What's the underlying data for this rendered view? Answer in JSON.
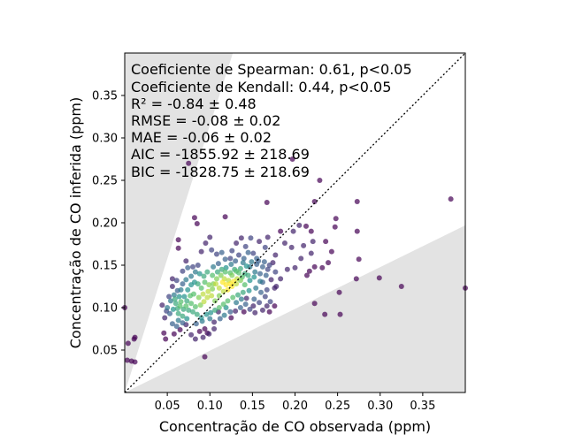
{
  "chart_data": {
    "type": "scatter",
    "xlabel": "Concentração de CO observada (ppm)",
    "ylabel": "Concentração de CO inferida (ppm)",
    "xlim": [
      0.0,
      0.4
    ],
    "ylim": [
      0.0,
      0.4
    ],
    "x_ticks": [
      "0.05",
      "0.10",
      "0.15",
      "0.20",
      "0.25",
      "0.30",
      "0.35"
    ],
    "y_ticks": [
      "0.05",
      "0.10",
      "0.15",
      "0.20",
      "0.25",
      "0.30",
      "0.35"
    ],
    "annotations": [
      "Coeficiente de Spearman: 0.61, p<0.05",
      "Coeficiente de Kendall: 0.44, p<0.05",
      "R² = -0.84 ± 0.48",
      "RMSE = -0.08 ± 0.02",
      "MAE = -0.06 ± 0.02",
      "AIC = -1855.92 ± 218.69",
      "BIC = -1828.75 ± 218.69"
    ],
    "identity_line": true,
    "shaded_regions": [
      {
        "vertices": [
          [
            0.0,
            0.0
          ],
          [
            0.0,
            0.4
          ],
          [
            0.127,
            0.4
          ]
        ]
      },
      {
        "vertices": [
          [
            0.0,
            0.0
          ],
          [
            0.4,
            0.0
          ],
          [
            0.4,
            0.197
          ]
        ]
      }
    ],
    "colormap": "viridis",
    "points": [
      [
        0.0,
        0.1,
        0.0
      ],
      [
        0.003,
        0.038,
        0.0
      ],
      [
        0.008,
        0.037,
        0.0
      ],
      [
        0.012,
        0.036,
        0.0
      ],
      [
        0.004,
        0.058,
        0.0
      ],
      [
        0.011,
        0.063,
        0.0
      ],
      [
        0.012,
        0.065,
        0.0
      ],
      [
        0.063,
        0.18,
        0.0
      ],
      [
        0.063,
        0.17,
        0.0
      ],
      [
        0.082,
        0.206,
        0.0
      ],
      [
        0.085,
        0.199,
        0.0
      ],
      [
        0.075,
        0.27,
        0.0
      ],
      [
        0.072,
        0.155,
        0.1
      ],
      [
        0.118,
        0.207,
        0.0
      ],
      [
        0.094,
        0.042,
        0.0
      ],
      [
        0.167,
        0.224,
        0.0
      ],
      [
        0.197,
        0.275,
        0.0
      ],
      [
        0.229,
        0.25,
        0.0
      ],
      [
        0.223,
        0.225,
        0.0
      ],
      [
        0.248,
        0.205,
        0.0
      ],
      [
        0.247,
        0.195,
        0.0
      ],
      [
        0.273,
        0.225,
        0.0
      ],
      [
        0.273,
        0.19,
        0.0
      ],
      [
        0.275,
        0.157,
        0.0
      ],
      [
        0.272,
        0.134,
        0.0
      ],
      [
        0.299,
        0.135,
        0.0
      ],
      [
        0.325,
        0.125,
        0.0
      ],
      [
        0.383,
        0.228,
        0.0
      ],
      [
        0.4,
        0.123,
        0.0
      ],
      [
        0.252,
        0.118,
        0.0
      ],
      [
        0.253,
        0.092,
        0.0
      ],
      [
        0.223,
        0.105,
        0.0
      ],
      [
        0.235,
        0.092,
        0.0
      ],
      [
        0.232,
        0.147,
        0.0
      ],
      [
        0.239,
        0.153,
        0.0
      ],
      [
        0.243,
        0.166,
        0.0
      ],
      [
        0.236,
        0.178,
        0.0
      ],
      [
        0.221,
        0.178,
        0.1
      ],
      [
        0.219,
        0.19,
        0.0
      ],
      [
        0.213,
        0.196,
        0.0
      ],
      [
        0.205,
        0.197,
        0.1
      ],
      [
        0.198,
        0.19,
        0.1
      ],
      [
        0.188,
        0.176,
        0.1
      ],
      [
        0.183,
        0.19,
        0.0
      ],
      [
        0.196,
        0.171,
        0.1
      ],
      [
        0.21,
        0.173,
        0.1
      ],
      [
        0.207,
        0.158,
        0.1
      ],
      [
        0.214,
        0.138,
        0.0
      ],
      [
        0.217,
        0.143,
        0.0
      ],
      [
        0.223,
        0.148,
        0.0
      ],
      [
        0.219,
        0.164,
        0.1
      ],
      [
        0.2,
        0.147,
        0.1
      ],
      [
        0.191,
        0.145,
        0.1
      ],
      [
        0.183,
        0.134,
        0.1
      ],
      [
        0.177,
        0.142,
        0.2
      ],
      [
        0.177,
        0.162,
        0.1
      ],
      [
        0.168,
        0.183,
        0.1
      ],
      [
        0.158,
        0.178,
        0.1
      ],
      [
        0.165,
        0.171,
        0.2
      ],
      [
        0.176,
        0.102,
        0.0
      ],
      [
        0.17,
        0.095,
        0.0
      ],
      [
        0.151,
        0.102,
        0.1
      ],
      [
        0.143,
        0.111,
        0.1
      ],
      [
        0.14,
        0.095,
        0.0
      ],
      [
        0.13,
        0.096,
        0.1
      ],
      [
        0.125,
        0.088,
        0.0
      ],
      [
        0.11,
        0.095,
        0.1
      ],
      [
        0.105,
        0.083,
        0.1
      ],
      [
        0.094,
        0.075,
        0.0
      ],
      [
        0.097,
        0.07,
        0.0
      ],
      [
        0.088,
        0.072,
        0.0
      ],
      [
        0.078,
        0.068,
        0.1
      ],
      [
        0.072,
        0.08,
        0.1
      ],
      [
        0.065,
        0.074,
        0.0
      ],
      [
        0.058,
        0.069,
        0.0
      ],
      [
        0.048,
        0.063,
        0.0
      ],
      [
        0.046,
        0.07,
        0.0
      ],
      [
        0.047,
        0.088,
        0.1
      ],
      [
        0.049,
        0.096,
        0.2
      ],
      [
        0.044,
        0.103,
        0.1
      ],
      [
        0.052,
        0.113,
        0.2
      ],
      [
        0.056,
        0.125,
        0.1
      ],
      [
        0.056,
        0.134,
        0.1
      ],
      [
        0.061,
        0.132,
        0.2
      ],
      [
        0.062,
        0.12,
        0.3
      ],
      [
        0.068,
        0.143,
        0.2
      ],
      [
        0.074,
        0.147,
        0.3
      ],
      [
        0.08,
        0.148,
        0.2
      ],
      [
        0.086,
        0.15,
        0.2
      ],
      [
        0.09,
        0.166,
        0.1
      ],
      [
        0.095,
        0.176,
        0.1
      ],
      [
        0.1,
        0.183,
        0.1
      ],
      [
        0.102,
        0.168,
        0.2
      ],
      [
        0.108,
        0.163,
        0.2
      ],
      [
        0.114,
        0.165,
        0.3
      ],
      [
        0.118,
        0.157,
        0.3
      ],
      [
        0.124,
        0.158,
        0.2
      ],
      [
        0.126,
        0.167,
        0.2
      ],
      [
        0.131,
        0.176,
        0.1
      ],
      [
        0.137,
        0.182,
        0.1
      ],
      [
        0.142,
        0.172,
        0.2
      ],
      [
        0.148,
        0.182,
        0.2
      ],
      [
        0.151,
        0.164,
        0.2
      ],
      [
        0.147,
        0.148,
        0.4
      ],
      [
        0.155,
        0.151,
        0.3
      ],
      [
        0.153,
        0.142,
        0.4
      ],
      [
        0.159,
        0.14,
        0.3
      ],
      [
        0.162,
        0.13,
        0.3
      ],
      [
        0.167,
        0.121,
        0.2
      ],
      [
        0.16,
        0.118,
        0.3
      ],
      [
        0.154,
        0.123,
        0.4
      ],
      [
        0.147,
        0.132,
        0.5
      ],
      [
        0.141,
        0.14,
        0.6
      ],
      [
        0.136,
        0.146,
        0.6
      ],
      [
        0.131,
        0.143,
        0.7
      ],
      [
        0.126,
        0.138,
        0.8
      ],
      [
        0.122,
        0.132,
        0.9
      ],
      [
        0.119,
        0.127,
        1.0
      ],
      [
        0.115,
        0.13,
        1.0
      ],
      [
        0.111,
        0.123,
        0.9
      ],
      [
        0.107,
        0.128,
        0.9
      ],
      [
        0.103,
        0.122,
        0.8
      ],
      [
        0.099,
        0.127,
        0.8
      ],
      [
        0.094,
        0.13,
        0.7
      ],
      [
        0.09,
        0.123,
        0.7
      ],
      [
        0.086,
        0.128,
        0.6
      ],
      [
        0.082,
        0.13,
        0.5
      ],
      [
        0.078,
        0.127,
        0.5
      ],
      [
        0.074,
        0.121,
        0.5
      ],
      [
        0.07,
        0.113,
        0.5
      ],
      [
        0.073,
        0.108,
        0.6
      ],
      [
        0.078,
        0.105,
        0.7
      ],
      [
        0.083,
        0.101,
        0.7
      ],
      [
        0.089,
        0.103,
        0.8
      ],
      [
        0.093,
        0.107,
        0.9
      ],
      [
        0.097,
        0.112,
        0.9
      ],
      [
        0.102,
        0.114,
        0.9
      ],
      [
        0.106,
        0.108,
        0.8
      ],
      [
        0.111,
        0.114,
        0.8
      ],
      [
        0.116,
        0.119,
        0.9
      ],
      [
        0.121,
        0.121,
        1.0
      ],
      [
        0.126,
        0.125,
        1.0
      ],
      [
        0.131,
        0.128,
        0.9
      ],
      [
        0.136,
        0.132,
        0.8
      ],
      [
        0.141,
        0.127,
        0.7
      ],
      [
        0.146,
        0.12,
        0.5
      ],
      [
        0.139,
        0.118,
        0.6
      ],
      [
        0.133,
        0.115,
        0.6
      ],
      [
        0.127,
        0.112,
        0.7
      ],
      [
        0.121,
        0.108,
        0.7
      ],
      [
        0.116,
        0.104,
        0.7
      ],
      [
        0.111,
        0.1,
        0.7
      ],
      [
        0.106,
        0.097,
        0.6
      ],
      [
        0.101,
        0.094,
        0.5
      ],
      [
        0.096,
        0.092,
        0.5
      ],
      [
        0.09,
        0.088,
        0.5
      ],
      [
        0.085,
        0.092,
        0.6
      ],
      [
        0.08,
        0.095,
        0.6
      ],
      [
        0.075,
        0.097,
        0.6
      ],
      [
        0.069,
        0.098,
        0.6
      ],
      [
        0.065,
        0.102,
        0.7
      ],
      [
        0.06,
        0.105,
        0.6
      ],
      [
        0.057,
        0.098,
        0.5
      ],
      [
        0.063,
        0.093,
        0.6
      ],
      [
        0.068,
        0.09,
        0.6
      ],
      [
        0.073,
        0.087,
        0.5
      ],
      [
        0.063,
        0.085,
        0.4
      ],
      [
        0.056,
        0.081,
        0.3
      ],
      [
        0.061,
        0.078,
        0.3
      ],
      [
        0.068,
        0.082,
        0.3
      ],
      [
        0.084,
        0.081,
        0.3
      ],
      [
        0.091,
        0.084,
        0.4
      ],
      [
        0.1,
        0.087,
        0.4
      ],
      [
        0.117,
        0.091,
        0.4
      ],
      [
        0.124,
        0.095,
        0.3
      ],
      [
        0.136,
        0.1,
        0.3
      ],
      [
        0.152,
        0.11,
        0.3
      ],
      [
        0.158,
        0.106,
        0.2
      ],
      [
        0.165,
        0.113,
        0.2
      ],
      [
        0.171,
        0.107,
        0.2
      ],
      [
        0.176,
        0.123,
        0.1
      ],
      [
        0.172,
        0.133,
        0.1
      ],
      [
        0.166,
        0.138,
        0.3
      ],
      [
        0.159,
        0.131,
        0.4
      ],
      [
        0.152,
        0.136,
        0.5
      ],
      [
        0.145,
        0.138,
        0.6
      ],
      [
        0.138,
        0.136,
        0.7
      ],
      [
        0.132,
        0.134,
        0.9
      ],
      [
        0.128,
        0.131,
        1.0
      ],
      [
        0.124,
        0.128,
        1.0
      ],
      [
        0.117,
        0.134,
        0.9
      ],
      [
        0.113,
        0.138,
        0.8
      ],
      [
        0.108,
        0.134,
        0.8
      ],
      [
        0.103,
        0.138,
        0.7
      ],
      [
        0.097,
        0.142,
        0.6
      ],
      [
        0.093,
        0.137,
        0.6
      ],
      [
        0.088,
        0.14,
        0.5
      ],
      [
        0.083,
        0.142,
        0.4
      ],
      [
        0.078,
        0.137,
        0.4
      ],
      [
        0.072,
        0.133,
        0.4
      ],
      [
        0.068,
        0.128,
        0.3
      ],
      [
        0.064,
        0.113,
        0.5
      ],
      [
        0.059,
        0.11,
        0.6
      ],
      [
        0.054,
        0.108,
        0.4
      ],
      [
        0.05,
        0.1,
        0.4
      ],
      [
        0.053,
        0.093,
        0.3
      ],
      [
        0.104,
        0.148,
        0.4
      ],
      [
        0.11,
        0.152,
        0.3
      ],
      [
        0.119,
        0.147,
        0.5
      ],
      [
        0.125,
        0.151,
        0.4
      ],
      [
        0.13,
        0.155,
        0.3
      ],
      [
        0.134,
        0.162,
        0.2
      ],
      [
        0.14,
        0.158,
        0.3
      ],
      [
        0.145,
        0.165,
        0.3
      ],
      [
        0.157,
        0.155,
        0.3
      ],
      [
        0.162,
        0.148,
        0.3
      ],
      [
        0.168,
        0.145,
        0.2
      ],
      [
        0.17,
        0.15,
        0.2
      ],
      [
        0.174,
        0.153,
        0.1
      ],
      [
        0.178,
        0.125,
        0.1
      ],
      [
        0.164,
        0.154,
        0.3
      ],
      [
        0.155,
        0.158,
        0.3
      ],
      [
        0.149,
        0.154,
        0.4
      ],
      [
        0.143,
        0.149,
        0.5
      ],
      [
        0.139,
        0.153,
        0.4
      ],
      [
        0.134,
        0.141,
        0.7
      ],
      [
        0.129,
        0.145,
        0.6
      ],
      [
        0.124,
        0.141,
        0.7
      ],
      [
        0.118,
        0.142,
        0.7
      ],
      [
        0.114,
        0.145,
        0.6
      ],
      [
        0.109,
        0.142,
        0.6
      ],
      [
        0.104,
        0.128,
        0.8
      ],
      [
        0.098,
        0.119,
        0.9
      ],
      [
        0.092,
        0.116,
        0.9
      ],
      [
        0.087,
        0.112,
        0.8
      ],
      [
        0.081,
        0.116,
        0.7
      ],
      [
        0.077,
        0.114,
        0.7
      ],
      [
        0.072,
        0.102,
        0.7
      ],
      [
        0.066,
        0.107,
        0.7
      ],
      [
        0.062,
        0.099,
        0.6
      ],
      [
        0.058,
        0.115,
        0.4
      ],
      [
        0.066,
        0.121,
        0.4
      ],
      [
        0.112,
        0.087,
        0.3
      ],
      [
        0.119,
        0.1,
        0.5
      ],
      [
        0.131,
        0.106,
        0.4
      ],
      [
        0.137,
        0.11,
        0.4
      ],
      [
        0.142,
        0.104,
        0.3
      ],
      [
        0.147,
        0.098,
        0.2
      ],
      [
        0.153,
        0.094,
        0.1
      ],
      [
        0.162,
        0.097,
        0.1
      ],
      [
        0.167,
        0.102,
        0.1
      ],
      [
        0.105,
        0.075,
        0.1
      ],
      [
        0.099,
        0.069,
        0.1
      ],
      [
        0.092,
        0.065,
        0.1
      ],
      [
        0.083,
        0.063,
        0.1
      ]
    ]
  }
}
